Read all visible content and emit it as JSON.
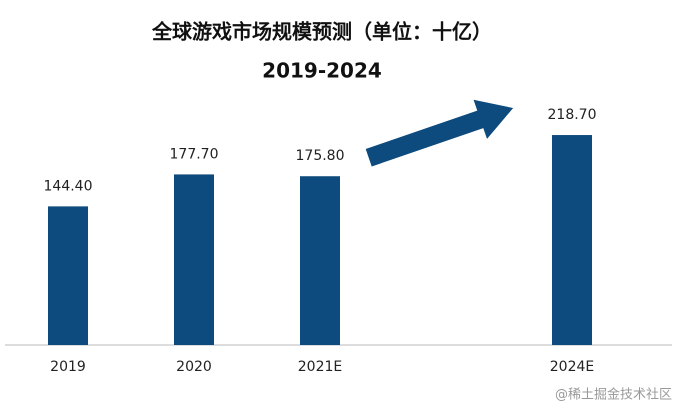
{
  "chart_data": {
    "type": "bar",
    "title": "全球游戏市场规模预测（单位：十亿）",
    "subtitle": "2019-2024",
    "categories": [
      "2019",
      "2020",
      "2021E",
      null,
      "2024E"
    ],
    "values": [
      144.4,
      177.7,
      175.8,
      null,
      218.7
    ],
    "value_labels": [
      "144.40",
      "177.70",
      "175.80",
      null,
      "218.70"
    ],
    "color": "#0d4a7d",
    "ylim": [
      0,
      250
    ],
    "watermark": "@稀土掘金技术社区"
  }
}
